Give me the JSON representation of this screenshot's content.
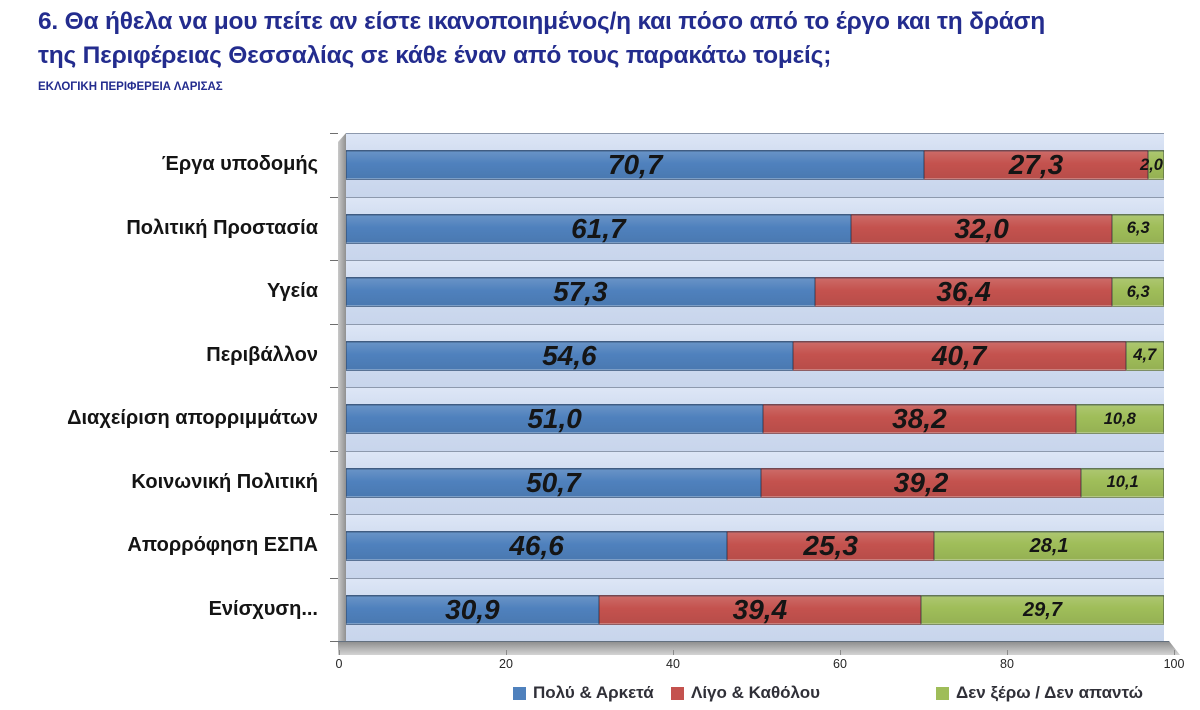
{
  "page": {
    "title_line1": "6. Θα ήθελα να μου πείτε αν είστε ικανοποιημένος/η και πόσο από το έργο και τη δράση",
    "title_line2": "της Περιφέρειας Θεσσαλίας σε κάθε έναν από τους παρακάτω τομείς;",
    "subtitle": "ΕΚΛΟΓΙΚΗ ΠΕΡΙΦΕΡΕΙΑ ΛΑΡΙΣΑΣ",
    "title_color": "#232C8E"
  },
  "chart_data": {
    "type": "bar",
    "orientation": "horizontal",
    "stacked": true,
    "style": "3d",
    "xlim": [
      0,
      100
    ],
    "x_ticks": [
      0,
      20,
      40,
      60,
      80,
      100
    ],
    "grid": false,
    "legend_position": "bottom",
    "value_label_format": "comma-decimal-1",
    "categories": [
      "Έργα υποδομής",
      "Πολιτική Προστασία",
      "Υγεία",
      "Περιβάλλον",
      "Διαχείριση απορριμμάτων",
      "Κοινωνική Πολιτική",
      "Απορρόφηση ΕΣΠΑ",
      "Ενίσχυση..."
    ],
    "series": [
      {
        "name": "Πολύ & Αρκετά",
        "color": "#4F81BD",
        "values": [
          70.7,
          61.7,
          57.3,
          54.6,
          51.0,
          50.7,
          46.6,
          30.9
        ]
      },
      {
        "name": "Λίγο & Καθόλου",
        "color": "#C4524E",
        "values": [
          27.3,
          32.0,
          36.4,
          40.7,
          38.2,
          39.2,
          25.3,
          39.4
        ]
      },
      {
        "name": "Δεν ξέρω / Δεν απαντώ",
        "color": "#9FBD59",
        "values": [
          2.0,
          6.3,
          6.3,
          4.7,
          10.8,
          10.1,
          28.1,
          29.7
        ]
      }
    ]
  },
  "colors": {
    "plot_background": "#CDD9EE",
    "plot_background_light": "#DDE6F6",
    "wall_gray": "#A6A6A6",
    "axis_text": "#262626",
    "legend_text": "#303038"
  }
}
